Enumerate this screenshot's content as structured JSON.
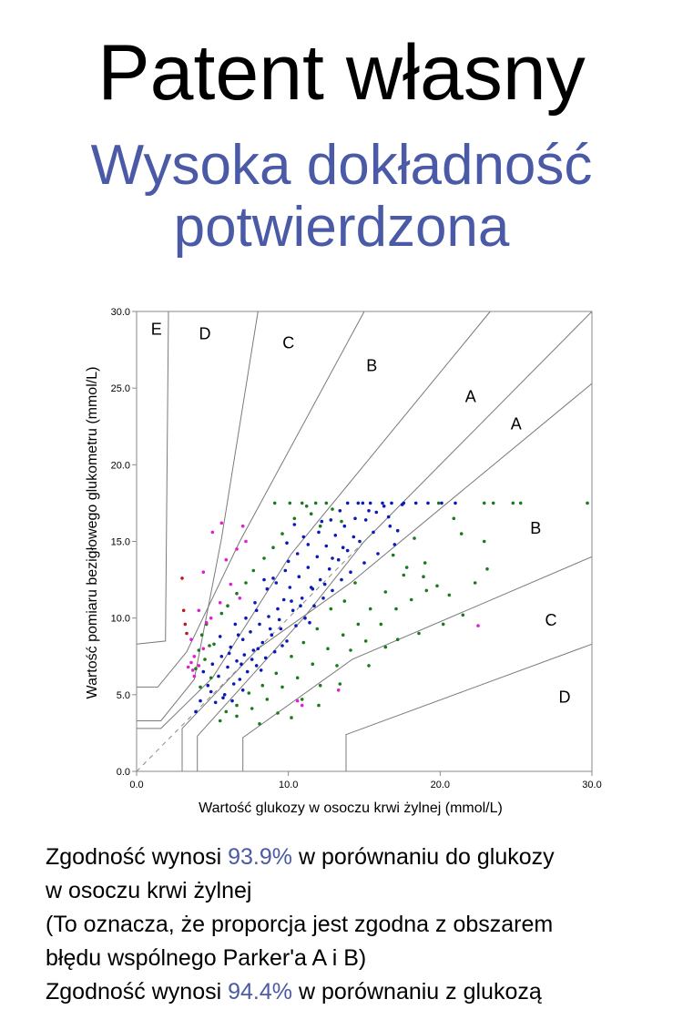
{
  "header": {
    "title": "Patent własny",
    "subtitle_line1": "Wysoka dokładność",
    "subtitle_line2": "potwierdzona"
  },
  "colors": {
    "accent_text": "#4a5aa6",
    "zone_A_points": "#0a1ab8",
    "zone_B_points": "#1c7a1c",
    "zone_C_points": "#e020d0",
    "zone_D_points": "#c01818",
    "zone_lines": "#7a7a7a"
  },
  "chart_data": {
    "type": "scatter",
    "title": "",
    "xlabel": "Wartość glukozy w osoczu krwi żylnej (mmol/L)",
    "ylabel": "Wartość pomiaru bezigłowego glukometru (mmol/L)",
    "xlim": [
      0,
      30
    ],
    "ylim": [
      0,
      30
    ],
    "x_ticks": [
      "0.0",
      "10.0",
      "20.0",
      "30.0"
    ],
    "y_ticks": [
      "0.0",
      "5.0",
      "10.0",
      "15.0",
      "20.0",
      "25.0",
      "30.0"
    ],
    "grid": false,
    "identity_line": true,
    "zone_labels": [
      {
        "label": "E",
        "x": 1.3,
        "y": 28.5
      },
      {
        "label": "D",
        "x": 4.5,
        "y": 28.2
      },
      {
        "label": "C",
        "x": 10.0,
        "y": 27.6
      },
      {
        "label": "B",
        "x": 15.5,
        "y": 26.1
      },
      {
        "label": "A",
        "x": 22.0,
        "y": 24.1
      },
      {
        "label": "A",
        "x": 25.0,
        "y": 22.3
      },
      {
        "label": "B",
        "x": 26.3,
        "y": 15.5
      },
      {
        "label": "C",
        "x": 27.3,
        "y": 9.5
      },
      {
        "label": "D",
        "x": 28.2,
        "y": 4.5
      }
    ],
    "zone_boundaries": [
      [
        [
          0,
          3.3
        ],
        [
          1.6,
          3.3
        ],
        [
          3.8,
          6.0
        ],
        [
          5.6,
          15.2
        ],
        [
          8.0,
          30.0
        ]
      ],
      [
        [
          0,
          2.8
        ],
        [
          1.6,
          2.8
        ],
        [
          5.0,
          6.1
        ],
        [
          10.2,
          14.2
        ],
        [
          23.3,
          30.0
        ]
      ],
      [
        [
          3.0,
          0
        ],
        [
          3.0,
          2.8
        ],
        [
          8.0,
          8.0
        ],
        [
          14.1,
          12.3
        ],
        [
          30.0,
          25.3
        ]
      ],
      [
        [
          0,
          5.5
        ],
        [
          1.4,
          5.5
        ],
        [
          3.3,
          7.8
        ],
        [
          6.8,
          15.0
        ],
        [
          15.0,
          30.0
        ]
      ],
      [
        [
          7.0,
          0
        ],
        [
          7.0,
          2.2
        ],
        [
          14.2,
          7.3
        ],
        [
          30.0,
          14.0
        ]
      ],
      [
        [
          0,
          8.3
        ],
        [
          1.9,
          8.5
        ],
        [
          2.1,
          30.0
        ]
      ],
      [
        [
          4.0,
          0
        ],
        [
          4.0,
          2.3
        ],
        [
          11.0,
          10.0
        ],
        [
          15.0,
          15.0
        ],
        [
          30.0,
          30.0
        ]
      ],
      [
        [
          13.8,
          0
        ],
        [
          13.8,
          2.4
        ],
        [
          30.0,
          8.3
        ]
      ]
    ],
    "series": [
      {
        "zone": "A",
        "color": "#0a1ab8",
        "points": [
          [
            4.4,
            6.5
          ],
          [
            4.7,
            5.6
          ],
          [
            5.0,
            7.0
          ],
          [
            5.2,
            4.5
          ],
          [
            5.4,
            6.2
          ],
          [
            5.6,
            7.5
          ],
          [
            5.8,
            5.0
          ],
          [
            6.0,
            6.8
          ],
          [
            6.2,
            8.1
          ],
          [
            6.4,
            5.7
          ],
          [
            6.6,
            7.2
          ],
          [
            6.8,
            6.0
          ],
          [
            7.0,
            8.6
          ],
          [
            7.1,
            7.6
          ],
          [
            7.3,
            6.5
          ],
          [
            7.5,
            9.1
          ],
          [
            7.7,
            7.9
          ],
          [
            7.9,
            6.9
          ],
          [
            8.1,
            9.6
          ],
          [
            8.3,
            8.4
          ],
          [
            8.5,
            7.4
          ],
          [
            8.7,
            10.1
          ],
          [
            8.9,
            8.9
          ],
          [
            9.1,
            7.8
          ],
          [
            9.3,
            10.6
          ],
          [
            9.5,
            9.3
          ],
          [
            9.7,
            11.2
          ],
          [
            9.9,
            8.5
          ],
          [
            10.1,
            12.0
          ],
          [
            10.3,
            10.5
          ],
          [
            10.5,
            9.5
          ],
          [
            10.7,
            12.7
          ],
          [
            10.9,
            11.3
          ],
          [
            11.1,
            10.0
          ],
          [
            11.3,
            13.3
          ],
          [
            11.5,
            12.0
          ],
          [
            11.7,
            10.8
          ],
          [
            11.9,
            14.0
          ],
          [
            12.1,
            12.5
          ],
          [
            12.3,
            11.3
          ],
          [
            12.5,
            14.7
          ],
          [
            12.7,
            13.2
          ],
          [
            12.9,
            11.8
          ],
          [
            13.1,
            15.4
          ],
          [
            13.3,
            13.8
          ],
          [
            13.5,
            12.5
          ],
          [
            13.7,
            16.0
          ],
          [
            13.9,
            14.4
          ],
          [
            14.1,
            13.0
          ],
          [
            14.4,
            16.5
          ],
          [
            14.7,
            15.0
          ],
          [
            15.0,
            13.6
          ],
          [
            15.3,
            17.0
          ],
          [
            15.6,
            15.6
          ],
          [
            15.9,
            14.2
          ],
          [
            16.3,
            17.3
          ],
          [
            16.7,
            16.0
          ],
          [
            17.0,
            14.8
          ],
          [
            17.5,
            17.4
          ],
          [
            16.2,
            17.5
          ],
          [
            14.9,
            17.5
          ],
          [
            13.9,
            17.5
          ],
          [
            6.5,
            9.6
          ],
          [
            7.8,
            11.0
          ],
          [
            9.0,
            12.6
          ],
          [
            10.0,
            13.7
          ],
          [
            11.0,
            15.3
          ],
          [
            12.2,
            16.3
          ],
          [
            5.5,
            8.8
          ],
          [
            8.2,
            6.6
          ],
          [
            9.6,
            8.2
          ],
          [
            11.4,
            9.7
          ],
          [
            6.3,
            4.6
          ],
          [
            7.0,
            5.3
          ],
          [
            4.9,
            5.2
          ],
          [
            3.9,
            3.9
          ],
          [
            4.2,
            4.6
          ],
          [
            5.7,
            4.8
          ],
          [
            6.9,
            7.0
          ],
          [
            7.6,
            7.3
          ],
          [
            8.0,
            8.0
          ],
          [
            8.8,
            9.3
          ],
          [
            9.4,
            9.9
          ],
          [
            10.2,
            11.1
          ],
          [
            10.8,
            10.8
          ],
          [
            11.6,
            11.9
          ],
          [
            12.4,
            12.2
          ],
          [
            12.9,
            13.9
          ],
          [
            13.6,
            14.6
          ],
          [
            14.3,
            15.3
          ],
          [
            15.1,
            16.4
          ],
          [
            15.8,
            16.9
          ],
          [
            16.6,
            16.6
          ],
          [
            17.2,
            15.7
          ],
          [
            6.1,
            7.7
          ],
          [
            6.7,
            8.9
          ],
          [
            7.2,
            10.0
          ],
          [
            7.9,
            10.5
          ],
          [
            8.6,
            11.9
          ],
          [
            9.2,
            12.3
          ],
          [
            9.8,
            13.1
          ],
          [
            10.6,
            14.2
          ],
          [
            11.3,
            14.8
          ],
          [
            12.0,
            15.6
          ],
          [
            12.8,
            16.4
          ],
          [
            13.4,
            17.0
          ],
          [
            14.6,
            17.5
          ],
          [
            15.4,
            17.5
          ],
          [
            16.8,
            17.5
          ],
          [
            17.6,
            17.5
          ],
          [
            18.4,
            17.5
          ],
          [
            19.2,
            17.5
          ],
          [
            20.1,
            17.5
          ],
          [
            21.0,
            17.5
          ],
          [
            10.4,
            16.1
          ],
          [
            9.9,
            14.9
          ],
          [
            8.4,
            12.5
          ]
        ]
      },
      {
        "zone": "B",
        "color": "#1c7a1c",
        "points": [
          [
            4.1,
            7.9
          ],
          [
            4.3,
            8.9
          ],
          [
            4.6,
            9.6
          ],
          [
            5.1,
            8.3
          ],
          [
            5.6,
            10.3
          ],
          [
            6.0,
            10.8
          ],
          [
            6.6,
            11.6
          ],
          [
            7.2,
            12.3
          ],
          [
            7.7,
            13.1
          ],
          [
            8.4,
            13.9
          ],
          [
            9.0,
            14.6
          ],
          [
            9.6,
            15.5
          ],
          [
            10.4,
            16.5
          ],
          [
            11.2,
            17.3
          ],
          [
            11.8,
            17.5
          ],
          [
            12.5,
            17.5
          ],
          [
            10.9,
            17.5
          ],
          [
            18.3,
            15.2
          ],
          [
            19.0,
            13.6
          ],
          [
            19.8,
            12.1
          ],
          [
            20.6,
            11.5
          ],
          [
            21.5,
            10.2
          ],
          [
            22.3,
            12.3
          ],
          [
            23.1,
            13.2
          ],
          [
            23.5,
            17.5
          ],
          [
            24.8,
            17.5
          ],
          [
            25.3,
            17.5
          ],
          [
            22.9,
            17.5
          ],
          [
            29.7,
            17.5
          ],
          [
            22.9,
            15.0
          ],
          [
            19.9,
            17.5
          ],
          [
            20.9,
            16.5
          ],
          [
            21.4,
            15.5
          ],
          [
            17.6,
            12.8
          ],
          [
            16.4,
            11.7
          ],
          [
            15.4,
            10.6
          ],
          [
            14.6,
            9.6
          ],
          [
            13.6,
            8.9
          ],
          [
            12.6,
            8.0
          ],
          [
            11.6,
            7.0
          ],
          [
            10.6,
            6.1
          ],
          [
            9.6,
            5.5
          ],
          [
            8.6,
            4.7
          ],
          [
            7.6,
            4.1
          ],
          [
            6.6,
            3.6
          ],
          [
            5.5,
            3.3
          ],
          [
            8.1,
            3.1
          ],
          [
            9.3,
            3.8
          ],
          [
            10.9,
            4.7
          ],
          [
            12.1,
            5.6
          ],
          [
            13.2,
            6.9
          ],
          [
            14.1,
            7.9
          ],
          [
            15.1,
            8.5
          ],
          [
            16.1,
            9.6
          ],
          [
            17.1,
            10.6
          ],
          [
            18.1,
            11.2
          ],
          [
            19.1,
            11.8
          ],
          [
            20.2,
            9.6
          ],
          [
            18.6,
            9.0
          ],
          [
            17.2,
            8.6
          ],
          [
            16.4,
            8.1
          ],
          [
            15.3,
            6.9
          ],
          [
            13.4,
            5.7
          ],
          [
            12.0,
            4.3
          ],
          [
            10.2,
            3.5
          ],
          [
            14.4,
            12.3
          ],
          [
            13.7,
            11.1
          ],
          [
            12.8,
            10.6
          ],
          [
            11.9,
            9.3
          ],
          [
            11.0,
            8.4
          ],
          [
            10.2,
            7.5
          ],
          [
            9.2,
            6.4
          ],
          [
            8.3,
            5.6
          ],
          [
            7.4,
            5.1
          ],
          [
            6.6,
            4.3
          ],
          [
            5.9,
            3.9
          ],
          [
            4.5,
            7.3
          ],
          [
            4.9,
            6.1
          ],
          [
            3.9,
            6.7
          ],
          [
            4.2,
            5.5
          ],
          [
            4.8,
            8.2
          ],
          [
            9.1,
            17.5
          ],
          [
            10.1,
            17.5
          ],
          [
            11.5,
            16.8
          ],
          [
            12.1,
            16.0
          ],
          [
            12.9,
            17.1
          ],
          [
            13.5,
            16.3
          ],
          [
            16.9,
            14.1
          ],
          [
            17.8,
            13.3
          ],
          [
            18.9,
            12.7
          ]
        ]
      },
      {
        "zone": "C",
        "color": "#e020d0",
        "points": [
          [
            3.6,
            8.6
          ],
          [
            3.8,
            7.5
          ],
          [
            4.1,
            6.9
          ],
          [
            3.7,
            6.6
          ],
          [
            4.6,
            9.7
          ],
          [
            4.9,
            10.0
          ],
          [
            5.5,
            11.0
          ],
          [
            6.2,
            12.2
          ],
          [
            6.8,
            11.3
          ],
          [
            5.9,
            13.8
          ],
          [
            5.6,
            16.2
          ],
          [
            5.0,
            15.6
          ],
          [
            6.6,
            14.5
          ],
          [
            7.2,
            15.0
          ],
          [
            7.0,
            16.0
          ],
          [
            4.4,
            13.0
          ],
          [
            4.1,
            10.5
          ],
          [
            10.6,
            4.6
          ],
          [
            10.9,
            4.3
          ],
          [
            13.3,
            5.3
          ],
          [
            22.5,
            9.5
          ],
          [
            3.4,
            6.8
          ],
          [
            3.6,
            7.1
          ],
          [
            3.8,
            6.2
          ],
          [
            4.4,
            8.0
          ]
        ]
      },
      {
        "zone": "D",
        "color": "#c01818",
        "points": [
          [
            3.0,
            12.6
          ],
          [
            3.1,
            10.5
          ],
          [
            3.2,
            9.6
          ],
          [
            3.3,
            9.0
          ]
        ]
      }
    ]
  },
  "footer": {
    "line1_a": "Zgodność wynosi ",
    "line1_pct": "93.9%",
    "line1_b": " w porównaniu do glukozy",
    "line2": "w osoczu krwi żylnej",
    "line3": "(To oznacza, że proporcja jest zgodna z obszarem",
    "line4": "błędu wspólnego Parker'a A i B)",
    "line5_a": "Zgodność wynosi ",
    "line5_pct": "94.4%",
    "line5_b": " w porównaniu z glukozą"
  }
}
